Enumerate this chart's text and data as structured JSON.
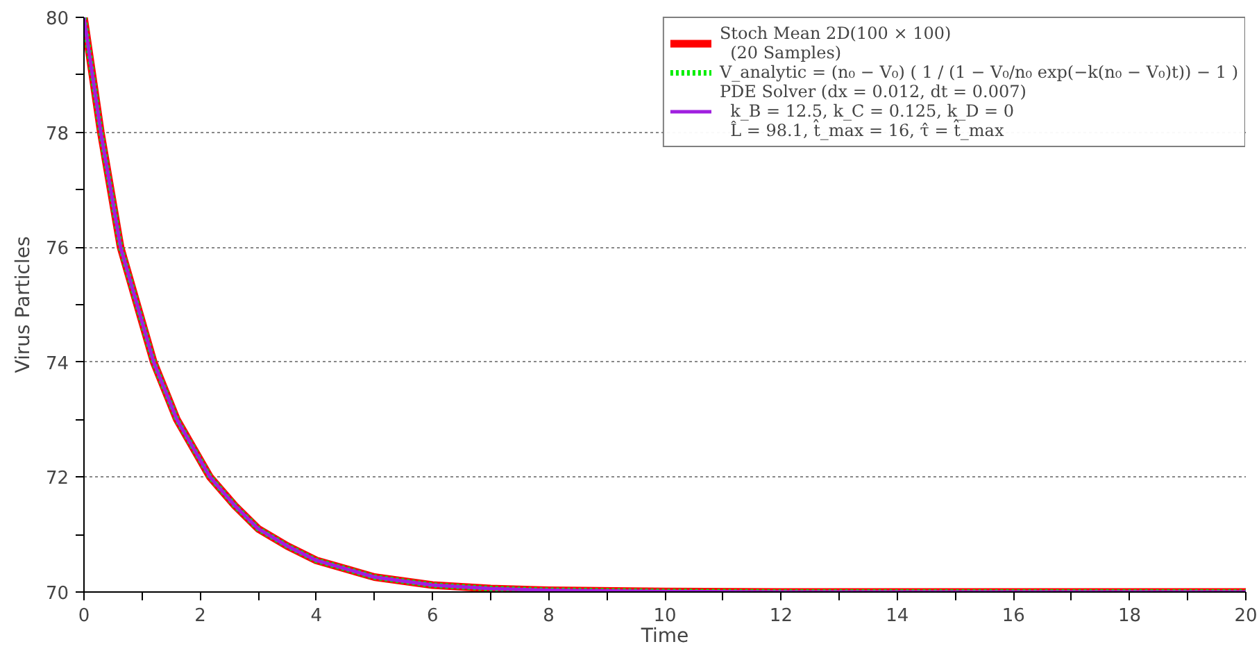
{
  "chart_data": {
    "type": "line",
    "xlabel": "Time",
    "ylabel": "Virus Particles",
    "x": [
      0,
      0.29,
      0.63,
      1.2,
      1.6,
      2.17,
      2.6,
      3,
      3.5,
      4,
      5,
      6,
      7,
      8,
      10,
      12,
      14,
      16,
      18,
      20
    ],
    "series": [
      {
        "name": "Stoch Mean 2D(100 × 100)\n  (20 Samples)",
        "color": "#ff0000",
        "line_style": "solid",
        "values": [
          80,
          78,
          76,
          74,
          73,
          72,
          71.5,
          71.1,
          70.8,
          70.55,
          70.26,
          70.12,
          70.06,
          70.03,
          70.01,
          70,
          70,
          70,
          70,
          70
        ]
      },
      {
        "name": "V_analytic = (n₀ − V₀) ( 1 / (1 − V₀/n₀ exp(−k(n₀ − V₀)t)) − 1 )",
        "color": "#00ee00",
        "line_style": "dotted",
        "values": [
          80,
          78,
          76,
          74,
          73,
          72,
          71.5,
          71.1,
          70.8,
          70.55,
          70.26,
          70.12,
          70.06,
          70.03,
          70.01,
          70,
          70,
          70,
          70,
          70
        ]
      },
      {
        "name": "PDE Solver (dx = 0.012, dt = 0.007)\n  k_B = 12.5, k_C = 0.125, k_D = 0\n  L̂ = 98.1, t̂_max = 16, τ̂ = t̂_max",
        "color": "#a020e0",
        "line_style": "solid",
        "values": [
          80,
          78,
          76,
          74,
          73,
          72,
          71.5,
          71.1,
          70.8,
          70.55,
          70.26,
          70.12,
          70.06,
          70.03,
          70.01,
          70,
          70,
          70,
          70,
          70
        ]
      }
    ],
    "xlim": [
      0,
      20
    ],
    "ylim": [
      70,
      80
    ],
    "xticks": [
      0,
      {
        "value": 1,
        "label": null
      },
      2,
      {
        "value": 3,
        "label": null
      },
      4,
      {
        "value": 5,
        "label": null
      },
      6,
      {
        "value": 7,
        "label": null
      },
      8,
      {
        "value": 9,
        "label": null
      },
      10,
      {
        "value": 11,
        "label": null
      },
      12,
      {
        "value": 13,
        "label": null
      },
      14,
      {
        "value": 15,
        "label": null
      },
      16,
      {
        "value": 17,
        "label": null
      },
      18,
      {
        "value": 19,
        "label": null
      },
      20
    ],
    "yticks": [
      70,
      {
        "value": 71,
        "label": null
      },
      72,
      {
        "value": 73,
        "label": null
      },
      74,
      {
        "value": 75,
        "label": null
      },
      76,
      {
        "value": 77,
        "label": null
      },
      78,
      {
        "value": 79,
        "label": null
      },
      80
    ],
    "grid": "y",
    "legend": "top right",
    "marker": "none"
  }
}
